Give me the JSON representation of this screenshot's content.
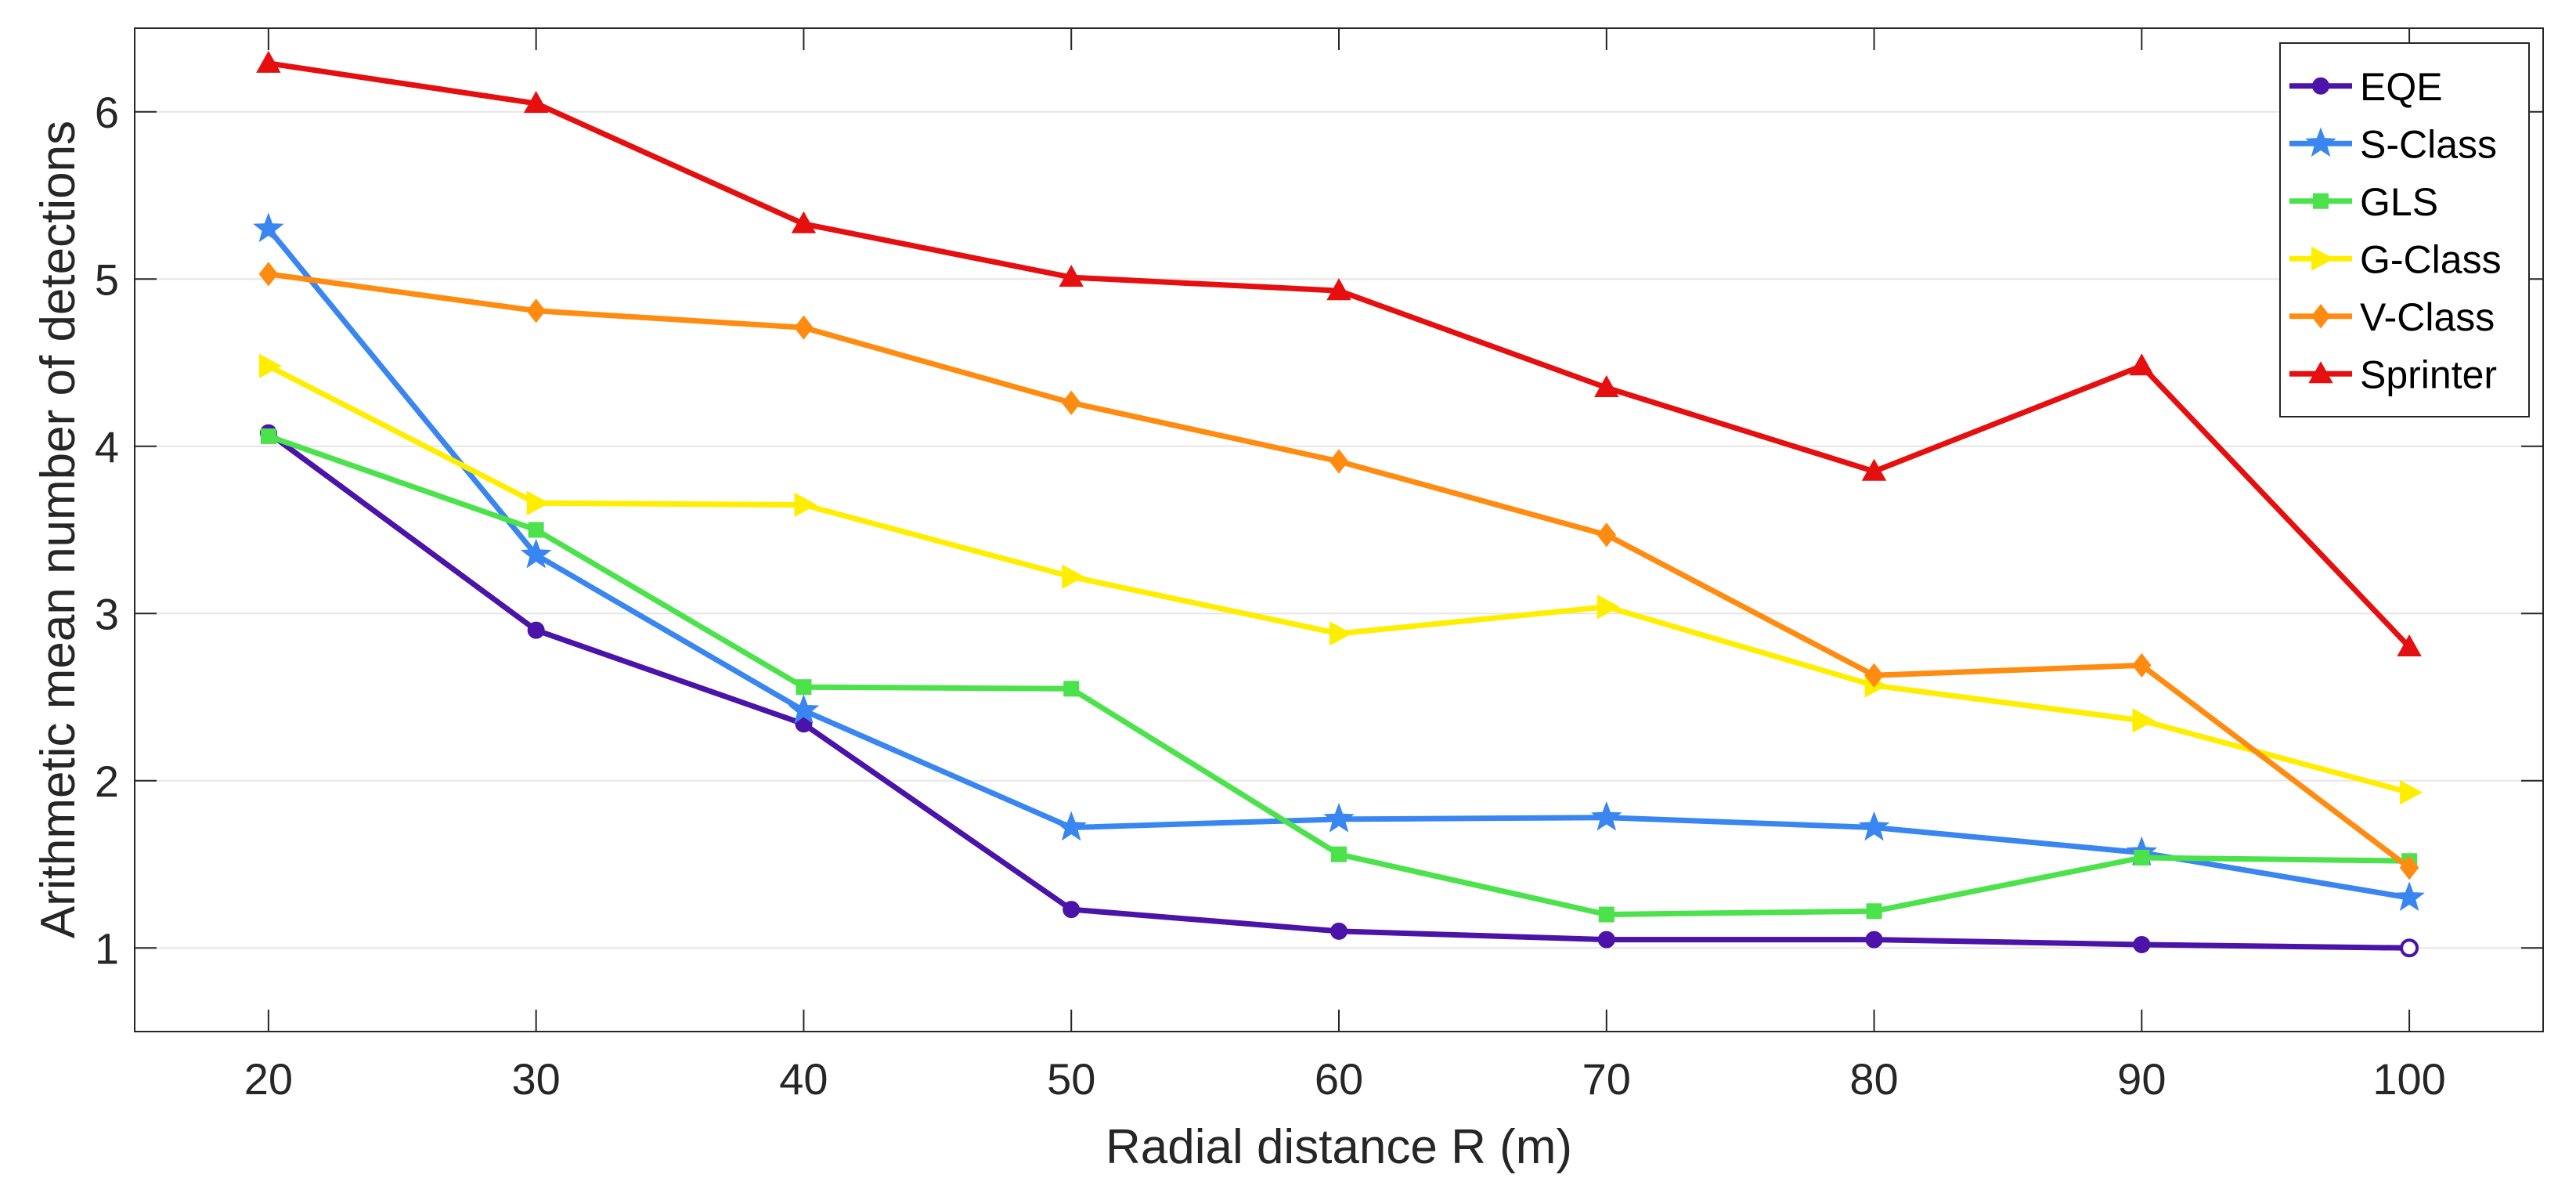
{
  "chart_data": {
    "type": "line",
    "title": "",
    "xlabel": "Radial distance R (m)",
    "ylabel": "Arithmetic mean number of detections",
    "x": [
      20,
      30,
      40,
      50,
      60,
      70,
      80,
      90,
      100
    ],
    "xlim": [
      15,
      105
    ],
    "ylim": [
      0.5,
      6.5
    ],
    "xticks": [
      "20",
      "30",
      "40",
      "50",
      "60",
      "70",
      "80",
      "90",
      "100"
    ],
    "yticks": [
      "1",
      "2",
      "3",
      "4",
      "5",
      "6"
    ],
    "grid": "horizontal",
    "legend_position": "top-right",
    "series": [
      {
        "name": "EQE",
        "color": "#4b13a8",
        "marker": "circle",
        "values": [
          4.08,
          2.9,
          2.34,
          1.23,
          1.1,
          1.05,
          1.05,
          1.02,
          1.0
        ]
      },
      {
        "name": "S-Class",
        "color": "#3a86f0",
        "marker": "star",
        "values": [
          5.3,
          3.35,
          2.42,
          1.72,
          1.77,
          1.78,
          1.72,
          1.57,
          1.3
        ]
      },
      {
        "name": "GLS",
        "color": "#4be24b",
        "marker": "square",
        "values": [
          4.06,
          3.5,
          2.56,
          2.55,
          1.56,
          1.2,
          1.22,
          1.54,
          1.52
        ]
      },
      {
        "name": "G-Class",
        "color": "#ffee00",
        "marker": "triangle-right",
        "values": [
          4.48,
          3.66,
          3.65,
          3.22,
          2.88,
          3.04,
          2.57,
          2.36,
          1.93
        ]
      },
      {
        "name": "V-Class",
        "color": "#ff8c11",
        "marker": "diamond",
        "values": [
          5.03,
          4.81,
          4.71,
          4.26,
          3.91,
          3.47,
          2.63,
          2.69,
          1.48
        ]
      },
      {
        "name": "Sprinter",
        "color": "#e60f0f",
        "marker": "triangle-up",
        "values": [
          6.29,
          6.05,
          5.33,
          5.01,
          4.93,
          4.35,
          3.85,
          4.48,
          2.8
        ]
      }
    ]
  }
}
